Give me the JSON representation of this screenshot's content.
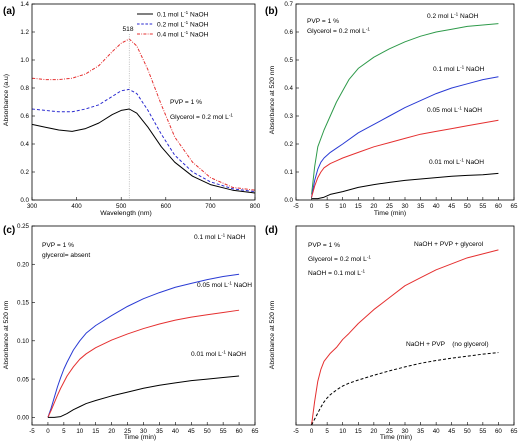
{
  "figure": {
    "panels": [
      {
        "label": "(a)",
        "xlabel": "Wavelength (nm)",
        "ylabel": "Absorbance (a.u)"
      },
      {
        "label": "(b)",
        "xlabel": "Time (min)",
        "ylabel": "Absorbance at 520 nm"
      },
      {
        "label": "(c)",
        "xlabel": "Time (min)",
        "ylabel": "Absorbance at 520 nm"
      },
      {
        "label": "(d)",
        "xlabel": "Time (min)",
        "ylabel": "Absorbance at 520 nm"
      }
    ]
  },
  "chart_data": [
    {
      "id": "a",
      "type": "line",
      "xlabel": "Wavelength (nm)",
      "ylabel": "Absorbance (a.u)",
      "xlim": [
        300,
        800
      ],
      "ylim": [
        0.0,
        1.4
      ],
      "xticks": [
        300,
        400,
        500,
        600,
        700,
        800
      ],
      "yticks": [
        0.0,
        0.2,
        0.4,
        0.6,
        0.8,
        1.0,
        1.2,
        1.4
      ],
      "legend": "top-right",
      "annotations": [
        "518",
        "PVP = 1 %",
        "Glycerol = 0.2 mol L-1"
      ],
      "peak_marker_x": 518,
      "series": [
        {
          "name": "0.1 mol L-1 NaOH",
          "color": "#000000",
          "style": "solid",
          "x": [
            300,
            330,
            360,
            390,
            420,
            450,
            480,
            500,
            518,
            535,
            560,
            590,
            620,
            660,
            700,
            750,
            800
          ],
          "y": [
            0.54,
            0.52,
            0.5,
            0.49,
            0.51,
            0.55,
            0.61,
            0.64,
            0.65,
            0.62,
            0.52,
            0.38,
            0.27,
            0.17,
            0.11,
            0.07,
            0.05
          ]
        },
        {
          "name": "0.2 mol L-1 NaOH",
          "color": "#2a2ad0",
          "style": "dashed",
          "x": [
            300,
            330,
            360,
            390,
            420,
            450,
            480,
            500,
            518,
            535,
            560,
            590,
            620,
            660,
            700,
            750,
            800
          ],
          "y": [
            0.65,
            0.64,
            0.63,
            0.63,
            0.65,
            0.68,
            0.74,
            0.78,
            0.79,
            0.76,
            0.64,
            0.47,
            0.32,
            0.2,
            0.13,
            0.08,
            0.06
          ]
        },
        {
          "name": "0.4 mol L-1 NaOH",
          "color": "#e53030",
          "style": "dashdot",
          "x": [
            300,
            330,
            360,
            390,
            420,
            450,
            480,
            500,
            518,
            535,
            560,
            590,
            620,
            660,
            700,
            750,
            800
          ],
          "y": [
            0.87,
            0.86,
            0.86,
            0.87,
            0.9,
            0.96,
            1.06,
            1.12,
            1.15,
            1.1,
            0.93,
            0.68,
            0.45,
            0.27,
            0.16,
            0.09,
            0.07
          ]
        }
      ]
    },
    {
      "id": "b",
      "type": "line",
      "xlabel": "Time (min)",
      "ylabel": "Absorbance at 520 nm",
      "xlim": [
        -5,
        65
      ],
      "ylim": [
        0.0,
        0.7
      ],
      "xticks": [
        -5,
        0,
        5,
        10,
        15,
        20,
        25,
        30,
        35,
        40,
        45,
        50,
        55,
        60,
        65
      ],
      "yticks": [
        0.0,
        0.1,
        0.2,
        0.3,
        0.4,
        0.5,
        0.6,
        0.7
      ],
      "annotations": [
        "PVP = 1 %",
        "Glycerol = 0.2 mol L-1"
      ],
      "series": [
        {
          "name": "0.2 mol L-1 NaOH",
          "color": "#2e9a4a",
          "style": "solid",
          "x": [
            0,
            1,
            2,
            4,
            6,
            8,
            10,
            12,
            15,
            20,
            25,
            30,
            35,
            40,
            45,
            50,
            55,
            60
          ],
          "y": [
            0.02,
            0.12,
            0.19,
            0.25,
            0.3,
            0.35,
            0.39,
            0.43,
            0.47,
            0.51,
            0.54,
            0.565,
            0.585,
            0.6,
            0.61,
            0.62,
            0.625,
            0.63
          ]
        },
        {
          "name": "0.1 mol L-1 NaOH",
          "color": "#2a3bd4",
          "style": "solid",
          "x": [
            0,
            1,
            2,
            3,
            4,
            6,
            8,
            10,
            15,
            20,
            25,
            30,
            35,
            40,
            45,
            50,
            55,
            60
          ],
          "y": [
            0.01,
            0.07,
            0.11,
            0.135,
            0.15,
            0.17,
            0.185,
            0.2,
            0.24,
            0.27,
            0.3,
            0.33,
            0.355,
            0.38,
            0.4,
            0.415,
            0.43,
            0.44
          ]
        },
        {
          "name": "0.05 mol L-1 NaOH",
          "color": "#e53030",
          "style": "solid",
          "x": [
            0,
            1,
            2,
            3,
            4,
            6,
            8,
            10,
            15,
            20,
            25,
            30,
            35,
            40,
            45,
            50,
            55,
            60
          ],
          "y": [
            0.01,
            0.05,
            0.08,
            0.1,
            0.115,
            0.13,
            0.14,
            0.15,
            0.17,
            0.19,
            0.205,
            0.22,
            0.235,
            0.245,
            0.255,
            0.265,
            0.275,
            0.285
          ]
        },
        {
          "name": "0.01 mol L-1 NaOH",
          "color": "#000000",
          "style": "solid",
          "x": [
            0,
            2,
            4,
            6,
            8,
            10,
            15,
            20,
            25,
            30,
            35,
            40,
            45,
            50,
            55,
            60
          ],
          "y": [
            0.005,
            0.005,
            0.01,
            0.02,
            0.025,
            0.03,
            0.045,
            0.055,
            0.063,
            0.07,
            0.075,
            0.08,
            0.085,
            0.088,
            0.09,
            0.095
          ]
        }
      ]
    },
    {
      "id": "c",
      "type": "line",
      "xlabel": "Time (min)",
      "ylabel": "Absorbance at 520 nm",
      "xlim": [
        -5,
        65
      ],
      "ylim": [
        -0.01,
        0.25
      ],
      "xticks": [
        -5,
        0,
        5,
        10,
        15,
        20,
        25,
        30,
        35,
        40,
        45,
        50,
        55,
        60,
        65
      ],
      "yticks": [
        0.0,
        0.05,
        0.1,
        0.15,
        0.2,
        0.25
      ],
      "yticklabels": [
        "0.00",
        "0.05",
        "0.10",
        "0.15",
        "0.20",
        "0.25"
      ],
      "annotations": [
        "PVP = 1 %",
        "glycerol= absent"
      ],
      "series": [
        {
          "name": "0.1 mol L-1 NaOH",
          "color": "#2a3bd4",
          "style": "solid",
          "x": [
            0,
            1,
            2,
            3,
            4,
            5,
            6,
            8,
            10,
            12,
            15,
            20,
            25,
            30,
            35,
            40,
            45,
            50,
            55,
            60
          ],
          "y": [
            0.0,
            0.012,
            0.026,
            0.04,
            0.052,
            0.063,
            0.072,
            0.088,
            0.1,
            0.11,
            0.12,
            0.133,
            0.145,
            0.155,
            0.163,
            0.17,
            0.175,
            0.18,
            0.184,
            0.187
          ]
        },
        {
          "name": "0.05 mol L-1 NaOH",
          "color": "#e53030",
          "style": "solid",
          "x": [
            0,
            1,
            2,
            3,
            4,
            5,
            6,
            8,
            10,
            12,
            15,
            20,
            25,
            30,
            35,
            40,
            45,
            50,
            55,
            60
          ],
          "y": [
            0.0,
            0.009,
            0.019,
            0.029,
            0.038,
            0.046,
            0.054,
            0.066,
            0.076,
            0.083,
            0.091,
            0.101,
            0.109,
            0.116,
            0.122,
            0.127,
            0.131,
            0.134,
            0.137,
            0.14
          ]
        },
        {
          "name": "0.01 mol L-1 NaOH",
          "color": "#000000",
          "style": "solid",
          "x": [
            0,
            2,
            4,
            5,
            6,
            8,
            10,
            12,
            15,
            20,
            25,
            30,
            35,
            40,
            45,
            50,
            55,
            60
          ],
          "y": [
            0.0,
            0.0,
            0.001,
            0.003,
            0.005,
            0.01,
            0.014,
            0.018,
            0.022,
            0.028,
            0.033,
            0.038,
            0.042,
            0.045,
            0.048,
            0.05,
            0.052,
            0.054
          ]
        }
      ]
    },
    {
      "id": "d",
      "type": "line",
      "xlabel": "Time (min)",
      "ylabel": "Absorbance at 520 nm",
      "xlim": [
        -5,
        65
      ],
      "ylim": [
        0.0,
        0.5
      ],
      "xticks": [
        -5,
        0,
        5,
        10,
        15,
        20,
        25,
        30,
        35,
        40,
        45,
        50,
        55,
        60,
        65
      ],
      "yticks": [],
      "annotations": [
        "PVP = 1 %",
        "Glycerol = 0.2 mol L-1",
        "NaOH = 0.1 mol L-1"
      ],
      "series": [
        {
          "name": "NaOH + PVP + glycerol",
          "color": "#e53030",
          "style": "solid",
          "x": [
            0,
            1,
            2,
            3,
            4,
            5,
            6,
            8,
            10,
            12,
            15,
            20,
            25,
            30,
            35,
            40,
            45,
            50,
            55,
            60
          ],
          "y": [
            0.0,
            0.06,
            0.11,
            0.14,
            0.16,
            0.17,
            0.18,
            0.195,
            0.215,
            0.23,
            0.255,
            0.29,
            0.32,
            0.35,
            0.37,
            0.39,
            0.405,
            0.42,
            0.43,
            0.44
          ]
        },
        {
          "name": "NaOH + PVP    (no glycerol)",
          "color": "#000000",
          "style": "dashed",
          "x": [
            0,
            1,
            2,
            3,
            4,
            5,
            6,
            8,
            10,
            12,
            15,
            20,
            25,
            30,
            35,
            40,
            45,
            50,
            55,
            60
          ],
          "y": [
            0.0,
            0.015,
            0.03,
            0.045,
            0.058,
            0.068,
            0.076,
            0.088,
            0.098,
            0.105,
            0.113,
            0.125,
            0.136,
            0.146,
            0.155,
            0.162,
            0.168,
            0.173,
            0.178,
            0.182
          ]
        }
      ]
    }
  ]
}
